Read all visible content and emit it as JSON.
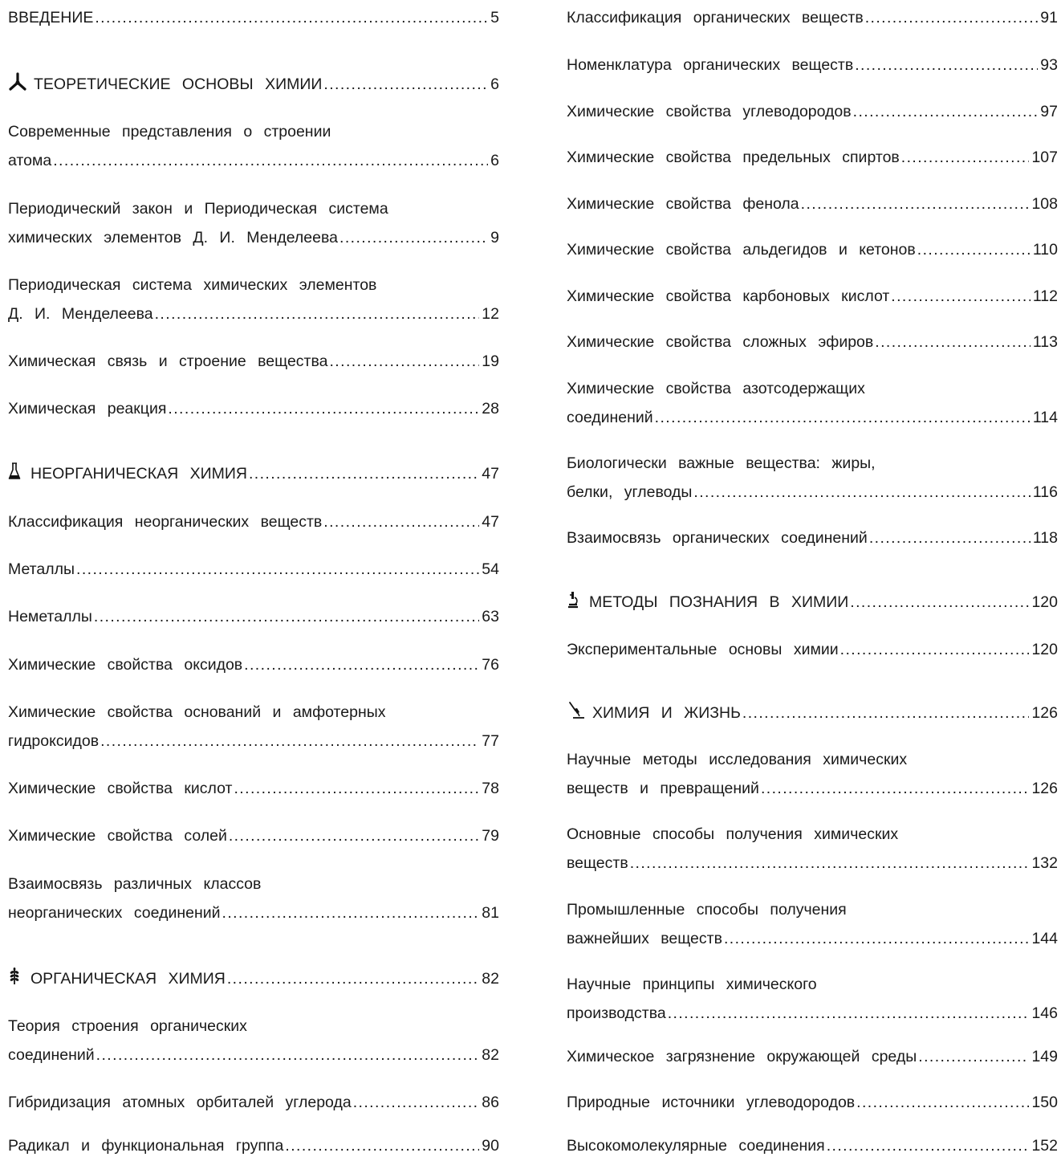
{
  "toc": {
    "left": [
      {
        "line1": "ВВЕДЕНИЕ",
        "page": "5"
      },
      {
        "line1": "ТЕОРЕТИЧЕСКИЕ ОСНОВЫ ХИМИИ",
        "page": "6",
        "icon": "tripod-icon"
      },
      {
        "line1": "Современные представления о строении",
        "line2": "атома",
        "page": "6"
      },
      {
        "line1": "Периодический закон и Периодическая система",
        "line2": "химических элементов Д. И. Менделеева",
        "page": "9"
      },
      {
        "line1": "Периодическая система химических элементов",
        "line2": "Д. И. Менделеева",
        "page": "12"
      },
      {
        "line1": "Химическая связь и строение вещества",
        "page": "19"
      },
      {
        "line1": "Химическая реакция",
        "page": "28"
      },
      {
        "line1": "НЕОРГАНИЧЕСКАЯ ХИМИЯ",
        "page": "47",
        "icon": "flask-icon"
      },
      {
        "line1": "Классификация неорганических веществ",
        "page": "47"
      },
      {
        "line1": "Металлы",
        "page": "54"
      },
      {
        "line1": "Неметаллы",
        "page": "63"
      },
      {
        "line1": "Химические свойства оксидов",
        "page": "76"
      },
      {
        "line1": "Химические свойства оснований и амфотерных",
        "line2": "гидроксидов",
        "page": "77"
      },
      {
        "line1": "Химические свойства кислот",
        "page": "78"
      },
      {
        "line1": "Химические свойства солей",
        "page": "79"
      },
      {
        "line1": "Взаимосвязь различных классов",
        "line2": "неорганических соединений",
        "page": "81"
      },
      {
        "line1": "ОРГАНИЧЕСКАЯ ХИМИЯ",
        "page": "82",
        "icon": "wheat-icon"
      },
      {
        "line1": "Теория строения органических",
        "line2": "соединений",
        "page": "82"
      },
      {
        "line1": "Гибридизация атомных орбиталей углерода",
        "page": "86"
      },
      {
        "line1": "Радикал и функциональная группа",
        "page": "90"
      }
    ],
    "right": [
      {
        "line1": "Классификация органических веществ",
        "page": "91"
      },
      {
        "line1": "Номенклатура органических веществ",
        "page": "93"
      },
      {
        "line1": "Химические свойства углеводородов",
        "page": "97"
      },
      {
        "line1": "Химические свойства предельных спиртов",
        "page": "107"
      },
      {
        "line1": "Химические свойства фенола",
        "page": "108"
      },
      {
        "line1": "Химические свойства альдегидов и кетонов",
        "page": "110"
      },
      {
        "line1": "Химические свойства карбоновых кислот",
        "page": "112"
      },
      {
        "line1": "Химические свойства сложных эфиров",
        "page": "113"
      },
      {
        "line1": "Химические свойства азотсодержащих",
        "line2": "соединений",
        "page": "114"
      },
      {
        "line1": "Биологически важные вещества: жиры,",
        "line2": "белки, углеводы",
        "page": "116"
      },
      {
        "line1": "Взаимосвязь органических соединений",
        "page": "118"
      },
      {
        "line1": "МЕТОДЫ ПОЗНАНИЯ В ХИМИИ",
        "page": "120",
        "icon": "microscope-icon"
      },
      {
        "line1": "Экспериментальные основы химии",
        "page": "120"
      },
      {
        "line1": "ХИМИЯ И ЖИЗНЬ",
        "page": "126",
        "icon": "pipette-icon"
      },
      {
        "line1": "Научные методы исследования химических",
        "line2": "веществ и превращений",
        "page": "126"
      },
      {
        "line1": "Основные способы получения химических",
        "line2": "веществ",
        "page": "132"
      },
      {
        "line1": "Промышленные способы получения",
        "line2": "важнейших веществ",
        "page": "144"
      },
      {
        "line1": "Научные принципы химического",
        "line2": "производства",
        "page": "146"
      },
      {
        "line1": "Химическое загрязнение окружающей среды",
        "page": "149"
      },
      {
        "line1": "Природные источники углеводородов",
        "page": "150"
      },
      {
        "line1": "Высокомолекулярные соединения",
        "page": "152"
      }
    ]
  }
}
